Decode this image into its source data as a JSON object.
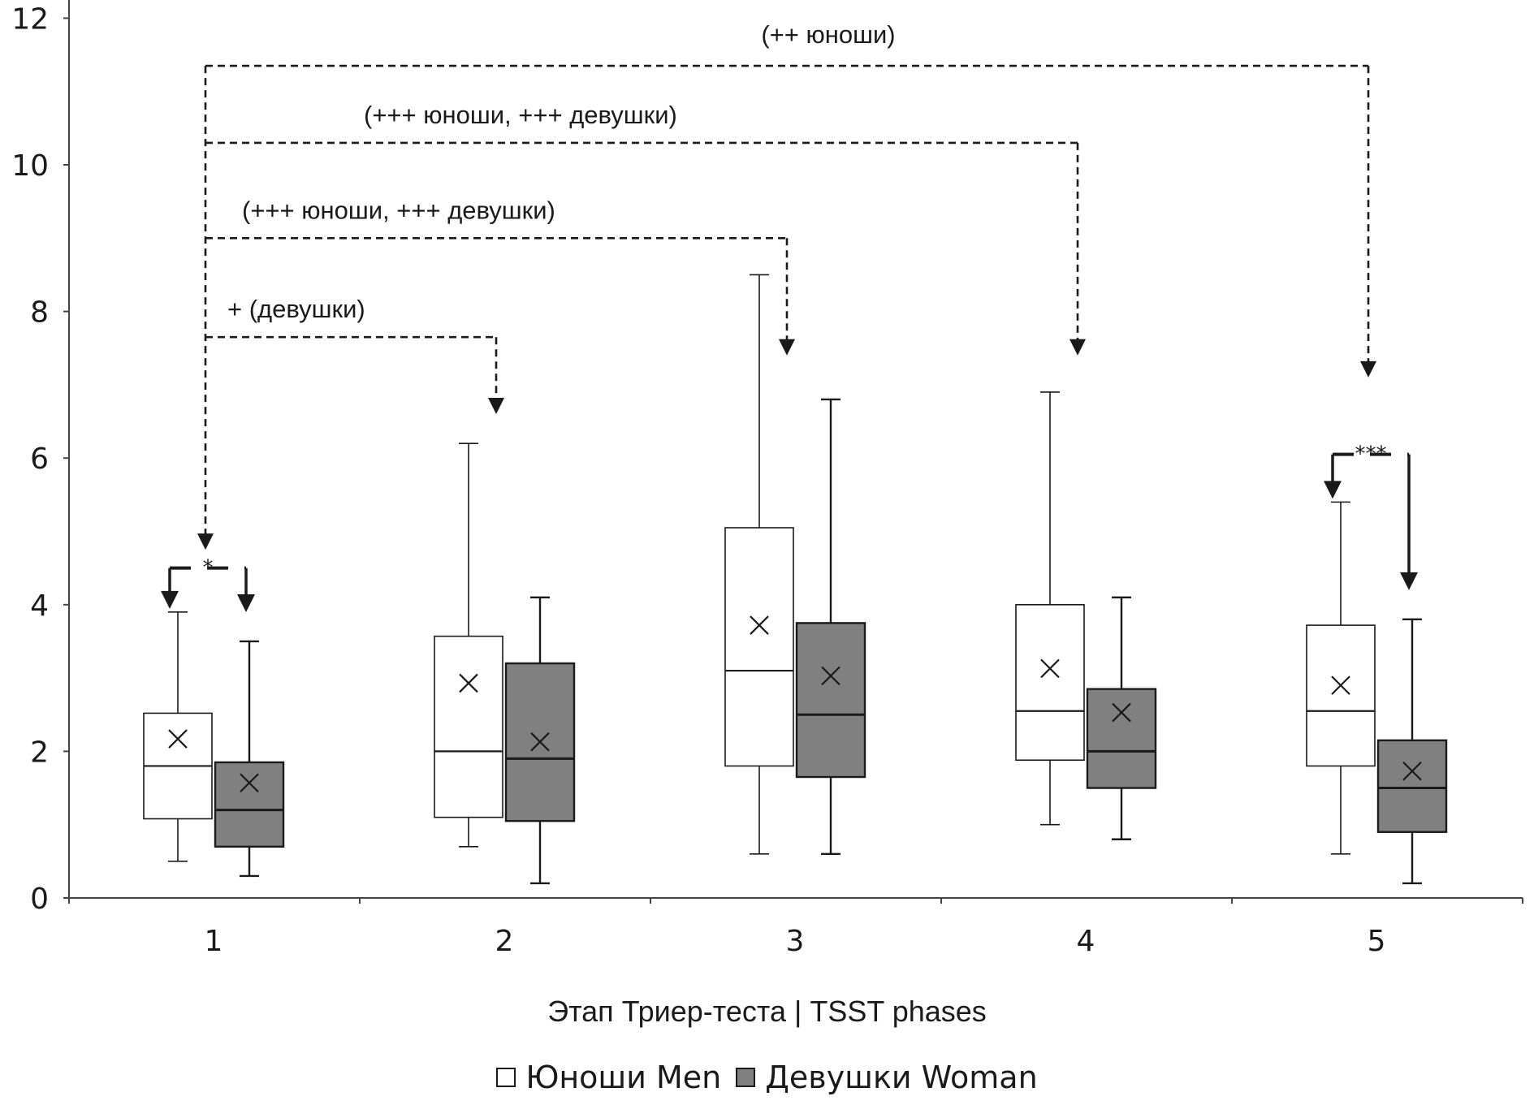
{
  "chart_data": {
    "type": "box",
    "xlabel": "Этап Триер-теста | TSST phases",
    "ylim": [
      0,
      12
    ],
    "yticks": [
      0,
      2,
      4,
      6,
      8,
      10,
      12
    ],
    "categories": [
      "1",
      "2",
      "3",
      "4",
      "5"
    ],
    "series": [
      {
        "name": "Юноши Men",
        "fill": "#ffffff",
        "boxes": [
          {
            "min": 0.5,
            "q1": 1.08,
            "median": 1.8,
            "q3": 2.52,
            "max": 3.9,
            "mean": 2.17
          },
          {
            "min": 0.7,
            "q1": 1.1,
            "median": 2.0,
            "q3": 3.57,
            "max": 6.2,
            "mean": 2.93
          },
          {
            "min": 0.6,
            "q1": 1.8,
            "median": 3.1,
            "q3": 5.05,
            "max": 8.5,
            "mean": 3.72
          },
          {
            "min": 1.0,
            "q1": 1.88,
            "median": 2.55,
            "q3": 4.0,
            "max": 6.9,
            "mean": 3.13
          },
          {
            "min": 0.6,
            "q1": 1.8,
            "median": 2.55,
            "q3": 3.72,
            "max": 5.4,
            "mean": 2.9
          }
        ]
      },
      {
        "name": "Девушки Woman",
        "fill": "#808080",
        "boxes": [
          {
            "min": 0.3,
            "q1": 0.7,
            "median": 1.2,
            "q3": 1.85,
            "max": 3.5,
            "mean": 1.57
          },
          {
            "min": 0.2,
            "q1": 1.05,
            "median": 1.9,
            "q3": 3.2,
            "max": 4.1,
            "mean": 2.13
          },
          {
            "min": 0.6,
            "q1": 1.65,
            "median": 2.5,
            "q3": 3.75,
            "max": 6.8,
            "mean": 3.03
          },
          {
            "min": 0.8,
            "q1": 1.5,
            "median": 2.0,
            "q3": 2.85,
            "max": 4.1,
            "mean": 2.53
          },
          {
            "min": 0.2,
            "q1": 0.9,
            "median": 1.5,
            "q3": 2.15,
            "max": 3.8,
            "mean": 1.73
          }
        ]
      }
    ],
    "annotations": {
      "between_phase": [
        {
          "label": "+ (девушки)",
          "to_phase": 2,
          "level": 7.65,
          "arrow_tip": 6.6
        },
        {
          "label": "(+++ юноши, +++ девушки)",
          "to_phase": 3,
          "level": 9.0,
          "arrow_tip": 7.4
        },
        {
          "label": "(+++ юноши, +++ девушки)",
          "to_phase": 4,
          "level": 10.3,
          "arrow_tip": 7.4
        },
        {
          "label": "(++ юноши)",
          "to_phase": 5,
          "level": 11.35,
          "arrow_tip": 7.1
        }
      ],
      "between_sex": [
        {
          "phase": 1,
          "label": "*",
          "level": 4.5
        },
        {
          "phase": 5,
          "label": "***",
          "level": 6.05
        }
      ]
    },
    "legend": [
      "Юноши Men",
      "Девушки Woman"
    ],
    "legend_position": "bottom"
  }
}
